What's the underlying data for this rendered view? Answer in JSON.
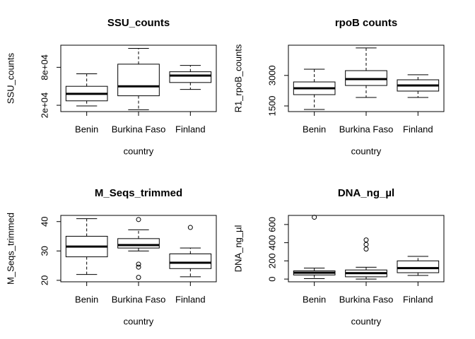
{
  "chart_data": [
    {
      "type": "boxplot",
      "title": "SSU_counts",
      "xlabel": "country",
      "ylabel": "SSU_counts",
      "categories": [
        "Benin",
        "Burkina Faso",
        "Finland"
      ],
      "boxes": [
        {
          "low": 19000,
          "q1": 27000,
          "median": 38000,
          "q3": 50000,
          "high": 69800,
          "outliers": []
        },
        {
          "low": 13000,
          "q1": 35000,
          "median": 50000,
          "q3": 85000,
          "high": 110000,
          "outliers": []
        },
        {
          "low": 45000,
          "q1": 56000,
          "median": 67000,
          "q3": 73000,
          "high": 83000,
          "outliers": []
        }
      ],
      "ylim": [
        10000,
        115000
      ],
      "yticks": [
        {
          "value": 20000,
          "label": "2e+04"
        },
        {
          "value": 80000,
          "label": "8e+04"
        }
      ]
    },
    {
      "type": "boxplot",
      "title": "rpoB counts",
      "xlabel": "country",
      "ylabel": "R1_rpoB_counts",
      "categories": [
        "Benin",
        "Burkina Faso",
        "Finland"
      ],
      "boxes": [
        {
          "low": 1325,
          "q1": 2055,
          "median": 2370,
          "q3": 2680,
          "high": 3305,
          "outliers": []
        },
        {
          "low": 1915,
          "q1": 2505,
          "median": 2820,
          "q3": 3235,
          "high": 4350,
          "outliers": []
        },
        {
          "low": 1915,
          "q1": 2230,
          "median": 2505,
          "q3": 2785,
          "high": 3030,
          "outliers": []
        }
      ],
      "ylim": [
        1222,
        4486
      ],
      "yticks": [
        1500,
        3000
      ]
    },
    {
      "type": "boxplot",
      "title": "M_Seqs_trimmed",
      "xlabel": "country",
      "ylabel": "M_Seqs_trimmed",
      "categories": [
        "Benin",
        "Burkina Faso",
        "Finland"
      ],
      "boxes": [
        {
          "low": 22,
          "q1": 28,
          "median": 31.5,
          "q3": 35,
          "high": 41,
          "outliers": []
        },
        {
          "low": 30,
          "q1": 31,
          "median": 32,
          "q3": 34.2,
          "high": 37.2,
          "outliers": [
            40.7,
            25.5,
            24.5,
            21
          ]
        },
        {
          "low": 21.2,
          "q1": 24,
          "median": 26,
          "q3": 29,
          "high": 31,
          "outliers": [
            38
          ]
        }
      ],
      "ylim": [
        19.5,
        42.1
      ],
      "yticks": [
        20,
        30,
        40
      ]
    },
    {
      "type": "boxplot",
      "title": "DNA_ng_µl",
      "xlabel": "country",
      "ylabel": "DNA_ng_µl",
      "categories": [
        "Benin",
        "Burkina Faso",
        "Finland"
      ],
      "boxes": [
        {
          "low": 5,
          "q1": 45,
          "median": 70,
          "q3": 90,
          "high": 120,
          "outliers": [
            680
          ]
        },
        {
          "low": 0,
          "q1": 25,
          "median": 65,
          "q3": 100,
          "high": 130,
          "outliers": [
            430,
            380,
            330
          ]
        },
        {
          "low": 40,
          "q1": 70,
          "median": 120,
          "q3": 200,
          "high": 250,
          "outliers": []
        }
      ],
      "ylim": [
        -30,
        700
      ],
      "yticks": [
        0,
        200,
        400,
        600
      ]
    }
  ]
}
